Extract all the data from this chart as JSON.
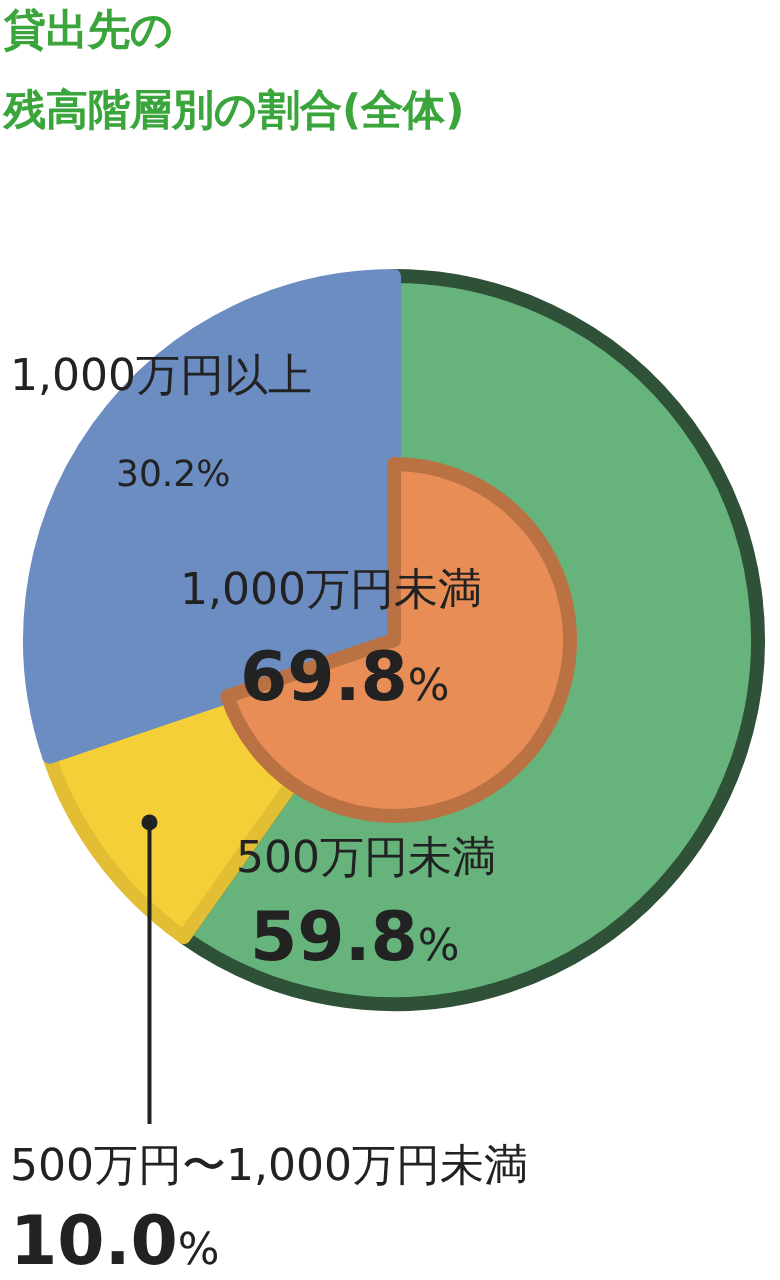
{
  "chart_data": [
    {
      "type": "pie",
      "title": "貸出先の",
      "subtitle": "残高階層別の割合(全体)",
      "categories": [
        "500万円未満",
        "500万円〜1,000万円未満",
        "1,000万円以上"
      ],
      "values": [
        59.8,
        10.0,
        30.2
      ],
      "colors": [
        "#66b47c",
        "#f5cf37",
        "#6b8dc2"
      ],
      "value_labels": [
        "59.8%",
        "10.0%",
        "30.2%"
      ]
    },
    {
      "type": "pie",
      "categories": [
        "1,000万円未満"
      ],
      "values": [
        69.8
      ],
      "colors": [
        "#e88d55"
      ],
      "value_labels": [
        "69.8%"
      ]
    }
  ]
}
